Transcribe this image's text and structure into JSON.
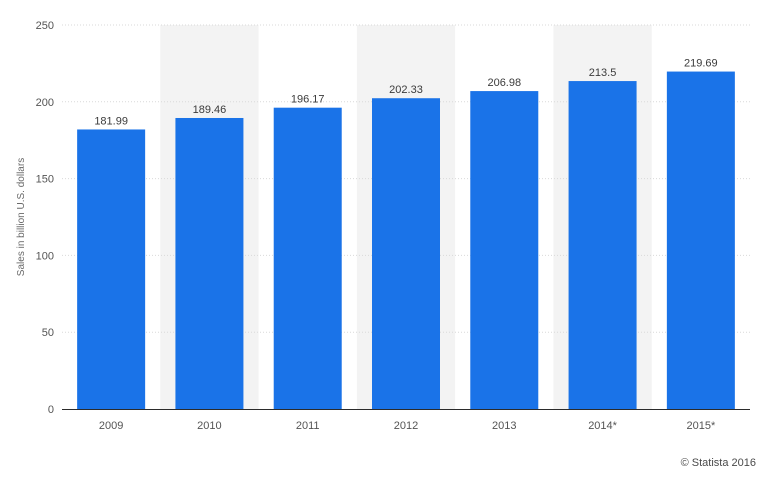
{
  "chart_data": {
    "type": "bar",
    "categories": [
      "2009",
      "2010",
      "2011",
      "2012",
      "2013",
      "2014*",
      "2015*"
    ],
    "values": [
      181.99,
      189.46,
      196.17,
      202.33,
      206.98,
      213.5,
      219.69
    ],
    "value_labels": [
      "181.99",
      "189.46",
      "196.17",
      "202.33",
      "206.98",
      "213.5",
      "219.69"
    ],
    "title": "",
    "xlabel": "",
    "ylabel": "Sales in billion U.S. dollars",
    "ylim": [
      0,
      250
    ],
    "yticks": [
      0,
      50,
      100,
      150,
      200,
      250
    ],
    "grid": true,
    "bar_color": "#1a73e8",
    "shaded_band_color": "#f3f3f3"
  },
  "credit": "© Statista 2016"
}
